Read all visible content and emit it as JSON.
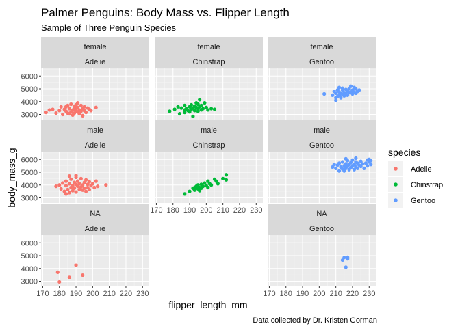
{
  "chart_data": {
    "type": "scatter",
    "title": "Palmer Penguins: Body Mass vs. Flipper Length",
    "subtitle": "Sample of Three Penguin Species",
    "caption": "Data collected by Dr. Kristen Gorman",
    "xlabel": "flipper_length_mm",
    "ylabel": "body_mass_g",
    "xlim": [
      169,
      234
    ],
    "ylim": [
      2600,
      6600
    ],
    "x_ticks": [
      170,
      180,
      190,
      200,
      210,
      220,
      230
    ],
    "y_ticks": [
      3000,
      4000,
      5000,
      6000
    ],
    "grid": true,
    "facet_rows": [
      "female",
      "male",
      "NA"
    ],
    "facet_cols": [
      "Adelie",
      "Chinstrap",
      "Gentoo"
    ],
    "legend": {
      "title": "species",
      "position": "right",
      "entries": [
        {
          "label": "Adelie",
          "color": "#F8766D"
        },
        {
          "label": "Chinstrap",
          "color": "#00BA38"
        },
        {
          "label": "Gentoo",
          "color": "#619CFF"
        }
      ]
    },
    "panels": [
      {
        "sex": "female",
        "species": "Adelie",
        "color": "#F8766D",
        "points": [
          [
            172,
            3150
          ],
          [
            174,
            3350
          ],
          [
            176,
            3400
          ],
          [
            178,
            3100
          ],
          [
            180,
            3300
          ],
          [
            181,
            3600
          ],
          [
            182,
            3000
          ],
          [
            183,
            3400
          ],
          [
            184,
            3250
          ],
          [
            185,
            3700
          ],
          [
            185,
            3100
          ],
          [
            186,
            3450
          ],
          [
            187,
            3200
          ],
          [
            187,
            3800
          ],
          [
            188,
            3350
          ],
          [
            188,
            2950
          ],
          [
            189,
            3600
          ],
          [
            189,
            3100
          ],
          [
            190,
            3450
          ],
          [
            190,
            3250
          ],
          [
            190,
            3750
          ],
          [
            191,
            3200
          ],
          [
            191,
            3550
          ],
          [
            192,
            3350
          ],
          [
            192,
            3050
          ],
          [
            193,
            3700
          ],
          [
            193,
            3250
          ],
          [
            194,
            3450
          ],
          [
            195,
            3300
          ],
          [
            195,
            3600
          ],
          [
            196,
            3150
          ],
          [
            197,
            3500
          ],
          [
            198,
            3400
          ],
          [
            199,
            3300
          ],
          [
            202,
            3550
          ],
          [
            186,
            3050
          ],
          [
            184,
            3600
          ],
          [
            194,
            2900
          ],
          [
            191,
            3900
          ],
          [
            189,
            3400
          ]
        ]
      },
      {
        "sex": "female",
        "species": "Chinstrap",
        "color": "#00BA38",
        "points": [
          [
            178,
            3250
          ],
          [
            181,
            3400
          ],
          [
            183,
            3600
          ],
          [
            184,
            3050
          ],
          [
            185,
            3500
          ],
          [
            187,
            3350
          ],
          [
            187,
            3700
          ],
          [
            188,
            3450
          ],
          [
            189,
            3300
          ],
          [
            190,
            3600
          ],
          [
            190,
            3200
          ],
          [
            191,
            3750
          ],
          [
            191,
            3400
          ],
          [
            192,
            3500
          ],
          [
            192,
            2850
          ],
          [
            193,
            3650
          ],
          [
            193,
            3300
          ],
          [
            194,
            3900
          ],
          [
            194,
            3550
          ],
          [
            195,
            3450
          ],
          [
            195,
            3800
          ],
          [
            196,
            3600
          ],
          [
            196,
            4150
          ],
          [
            197,
            3350
          ],
          [
            197,
            3700
          ],
          [
            198,
            3450
          ],
          [
            199,
            3900
          ],
          [
            200,
            3550
          ],
          [
            201,
            3350
          ],
          [
            203,
            3450
          ],
          [
            205,
            3400
          ],
          [
            187,
            3150
          ],
          [
            195,
            3250
          ]
        ]
      },
      {
        "sex": "female",
        "species": "Gentoo",
        "color": "#619CFF",
        "points": [
          [
            203,
            4600
          ],
          [
            208,
            4500
          ],
          [
            209,
            4800
          ],
          [
            210,
            4300
          ],
          [
            210,
            4650
          ],
          [
            211,
            4400
          ],
          [
            211,
            4900
          ],
          [
            212,
            4500
          ],
          [
            212,
            4750
          ],
          [
            213,
            4300
          ],
          [
            213,
            4650
          ],
          [
            214,
            4550
          ],
          [
            214,
            4900
          ],
          [
            214,
            5050
          ],
          [
            215,
            4450
          ],
          [
            215,
            4700
          ],
          [
            216,
            4600
          ],
          [
            216,
            4950
          ],
          [
            217,
            4500
          ],
          [
            217,
            4800
          ],
          [
            218,
            4700
          ],
          [
            218,
            5000
          ],
          [
            219,
            4750
          ],
          [
            219,
            5200
          ],
          [
            220,
            4600
          ],
          [
            220,
            4900
          ],
          [
            221,
            5100
          ],
          [
            221,
            4750
          ],
          [
            222,
            4650
          ],
          [
            222,
            5000
          ],
          [
            223,
            4800
          ],
          [
            224,
            4900
          ],
          [
            210,
            4100
          ],
          [
            212,
            5100
          ]
        ]
      },
      {
        "sex": "male",
        "species": "Adelie",
        "color": "#F8766D",
        "points": [
          [
            178,
            3900
          ],
          [
            180,
            4000
          ],
          [
            181,
            3700
          ],
          [
            182,
            4150
          ],
          [
            183,
            3500
          ],
          [
            184,
            3950
          ],
          [
            184,
            4300
          ],
          [
            185,
            3650
          ],
          [
            186,
            4100
          ],
          [
            186,
            3400
          ],
          [
            187,
            3800
          ],
          [
            187,
            4450
          ],
          [
            188,
            3950
          ],
          [
            188,
            3550
          ],
          [
            189,
            4200
          ],
          [
            189,
            3750
          ],
          [
            190,
            4050
          ],
          [
            190,
            3450
          ],
          [
            190,
            4600
          ],
          [
            191,
            3900
          ],
          [
            191,
            4300
          ],
          [
            192,
            3650
          ],
          [
            192,
            4100
          ],
          [
            193,
            3850
          ],
          [
            193,
            4500
          ],
          [
            194,
            3600
          ],
          [
            194,
            4000
          ],
          [
            195,
            4200
          ],
          [
            195,
            3750
          ],
          [
            196,
            4400
          ],
          [
            196,
            3500
          ],
          [
            197,
            4050
          ],
          [
            197,
            3800
          ],
          [
            198,
            4250
          ],
          [
            198,
            3650
          ],
          [
            199,
            3950
          ],
          [
            200,
            4100
          ],
          [
            201,
            3800
          ],
          [
            202,
            4300
          ],
          [
            203,
            3900
          ],
          [
            208,
            4000
          ],
          [
            186,
            4700
          ],
          [
            184,
            3300
          ],
          [
            190,
            4750
          ]
        ]
      },
      {
        "sex": "male",
        "species": "Chinstrap",
        "color": "#00BA38",
        "points": [
          [
            187,
            3300
          ],
          [
            190,
            3500
          ],
          [
            192,
            3750
          ],
          [
            193,
            3600
          ],
          [
            194,
            3900
          ],
          [
            195,
            3700
          ],
          [
            195,
            4000
          ],
          [
            196,
            3800
          ],
          [
            196,
            3550
          ],
          [
            197,
            4050
          ],
          [
            197,
            3750
          ],
          [
            198,
            3900
          ],
          [
            199,
            4150
          ],
          [
            200,
            3950
          ],
          [
            201,
            3800
          ],
          [
            201,
            4300
          ],
          [
            202,
            4100
          ],
          [
            203,
            4000
          ],
          [
            205,
            4450
          ],
          [
            206,
            4300
          ],
          [
            207,
            4100
          ],
          [
            210,
            4500
          ],
          [
            212,
            4800
          ],
          [
            212,
            4400
          ],
          [
            193,
            3800
          ]
        ]
      },
      {
        "sex": "male",
        "species": "Gentoo",
        "color": "#619CFF",
        "points": [
          [
            208,
            5400
          ],
          [
            209,
            5600
          ],
          [
            210,
            5300
          ],
          [
            211,
            5550
          ],
          [
            212,
            5100
          ],
          [
            212,
            5700
          ],
          [
            213,
            5400
          ],
          [
            214,
            5250
          ],
          [
            214,
            5800
          ],
          [
            215,
            5500
          ],
          [
            215,
            5100
          ],
          [
            216,
            5650
          ],
          [
            216,
            5300
          ],
          [
            217,
            5900
          ],
          [
            217,
            5450
          ],
          [
            218,
            5200
          ],
          [
            218,
            5600
          ],
          [
            219,
            5750
          ],
          [
            219,
            5350
          ],
          [
            220,
            5500
          ],
          [
            220,
            5950
          ],
          [
            221,
            5200
          ],
          [
            221,
            5600
          ],
          [
            222,
            5400
          ],
          [
            222,
            5800
          ],
          [
            223,
            5700
          ],
          [
            223,
            5300
          ],
          [
            224,
            5550
          ],
          [
            225,
            5850
          ],
          [
            225,
            5450
          ],
          [
            226,
            5650
          ],
          [
            227,
            5300
          ],
          [
            228,
            5700
          ],
          [
            229,
            5950
          ],
          [
            229,
            5500
          ],
          [
            230,
            6000
          ],
          [
            230,
            5800
          ],
          [
            231,
            5600
          ],
          [
            231,
            5900
          ],
          [
            216,
            6050
          ],
          [
            222,
            6100
          ]
        ]
      },
      {
        "sex": "NA",
        "species": "Adelie",
        "color": "#F8766D",
        "points": [
          [
            179,
            3700
          ],
          [
            180,
            2950
          ],
          [
            186,
            3300
          ],
          [
            190,
            4250
          ],
          [
            194,
            3475
          ]
        ]
      },
      {
        "sex": "NA",
        "species": "Gentoo",
        "color": "#619CFF",
        "points": [
          [
            214,
            4650
          ],
          [
            215,
            4850
          ],
          [
            216,
            4100
          ],
          [
            217,
            4875
          ],
          [
            217,
            4750
          ]
        ]
      }
    ]
  }
}
